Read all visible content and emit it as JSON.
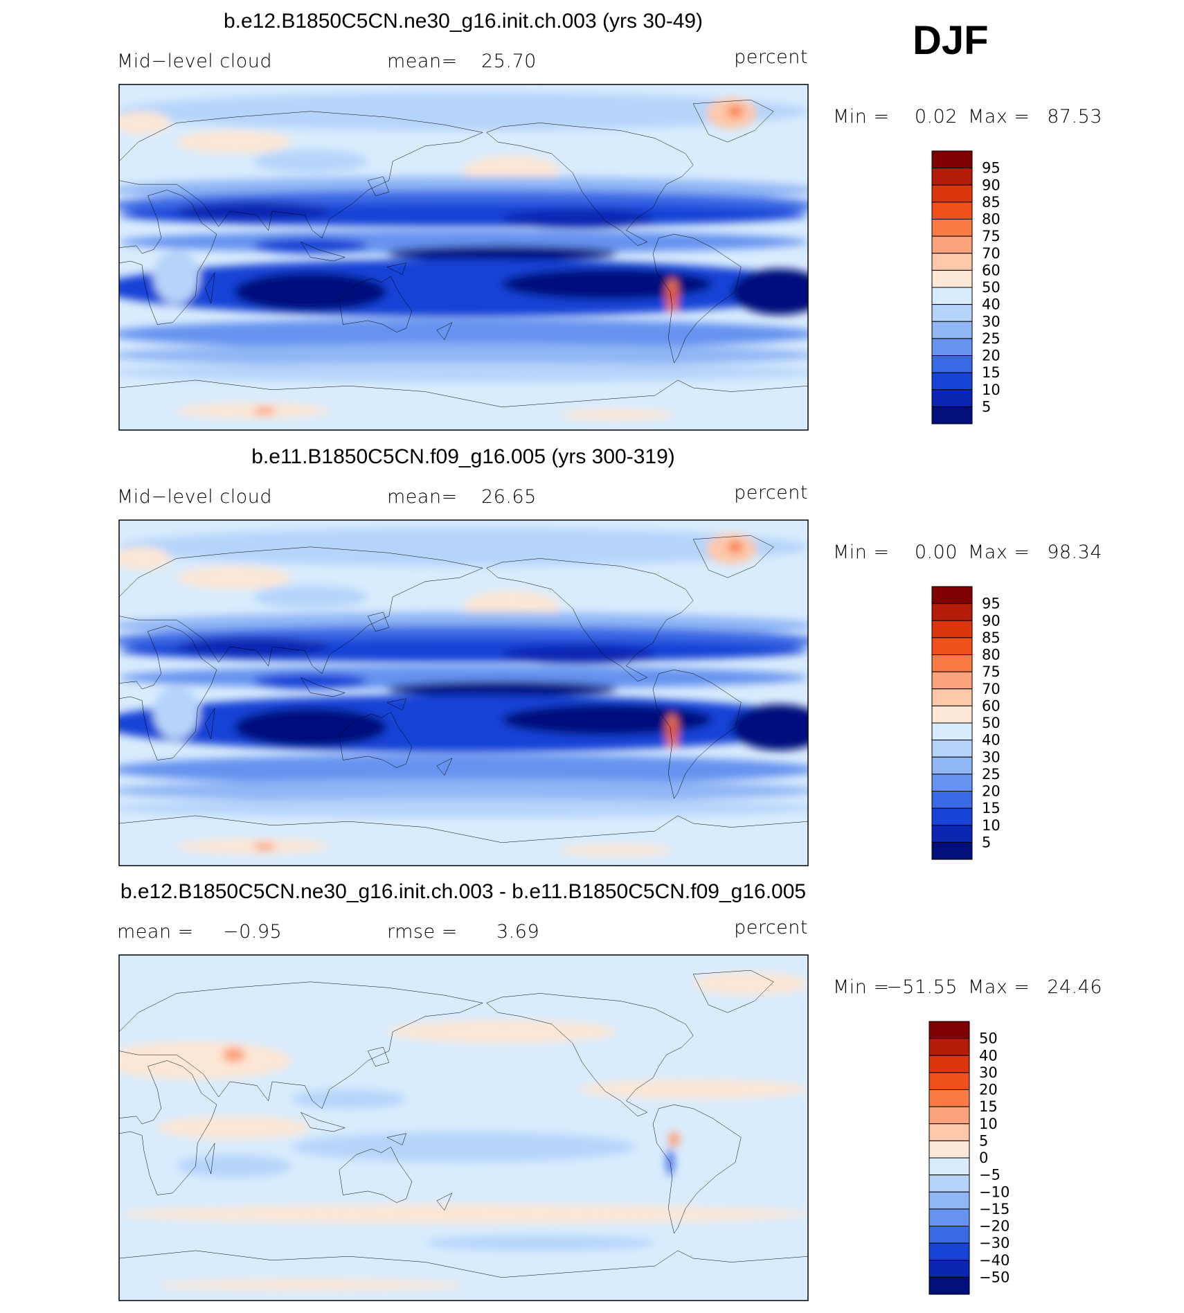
{
  "season": "DJF",
  "panels": [
    {
      "title": "b.e12.B1850C5CN.ne30_g16.init.ch.003 (yrs 30-49)",
      "left": "Mid−level cloud",
      "stats": [
        {
          "label": "mean=",
          "value": "25.70"
        }
      ],
      "units": "percent",
      "min_label": "Min =",
      "min": "0.02",
      "max_label": "Max =",
      "max": "87.53",
      "levels": [
        "95",
        "90",
        "85",
        "80",
        "75",
        "70",
        "60",
        "50",
        "40",
        "30",
        "25",
        "20",
        "15",
        "10",
        "5"
      ],
      "colors": [
        "#7f0000",
        "#b41c0a",
        "#dc360c",
        "#f0501a",
        "#f97a42",
        "#fca27c",
        "#fdc7aa",
        "#fde7d6",
        "#d9ecfd",
        "#b6d4fa",
        "#90b6f5",
        "#6693ef",
        "#3a69e4",
        "#1843d6",
        "#0a26b2",
        "#000f7c"
      ]
    },
    {
      "title": "b.e11.B1850C5CN.f09_g16.005 (yrs 300-319)",
      "left": "Mid−level cloud",
      "stats": [
        {
          "label": "mean=",
          "value": "26.65"
        }
      ],
      "units": "percent",
      "min_label": "Min =",
      "min": "0.00",
      "max_label": "Max =",
      "max": "98.34",
      "levels": [
        "95",
        "90",
        "85",
        "80",
        "75",
        "70",
        "60",
        "50",
        "40",
        "30",
        "25",
        "20",
        "15",
        "10",
        "5"
      ],
      "colors": [
        "#7f0000",
        "#b41c0a",
        "#dc360c",
        "#f0501a",
        "#f97a42",
        "#fca27c",
        "#fdc7aa",
        "#fde7d6",
        "#d9ecfd",
        "#b6d4fa",
        "#90b6f5",
        "#6693ef",
        "#3a69e4",
        "#1843d6",
        "#0a26b2",
        "#000f7c"
      ]
    },
    {
      "title": "b.e12.B1850C5CN.ne30_g16.init.ch.003 - b.e11.B1850C5CN.f09_g16.005",
      "stats": [
        {
          "label": "mean =",
          "value": "−0.95"
        },
        {
          "label": "rmse =",
          "value": "3.69"
        }
      ],
      "units": "percent",
      "min_label": "Min =",
      "min": "−51.55",
      "max_label": "Max =",
      "max": "24.46",
      "levels": [
        "50",
        "40",
        "30",
        "20",
        "15",
        "10",
        "5",
        "0",
        "−5",
        "−10",
        "−15",
        "−20",
        "−30",
        "−40",
        "−50"
      ],
      "colors": [
        "#7f0000",
        "#b41c0a",
        "#dc360c",
        "#f0501a",
        "#f97a42",
        "#fca27c",
        "#fdc7aa",
        "#fde7d6",
        "#d9ecfd",
        "#b6d4fa",
        "#90b6f5",
        "#6693ef",
        "#3a69e4",
        "#1843d6",
        "#0a26b2",
        "#000f7c"
      ]
    }
  ]
}
